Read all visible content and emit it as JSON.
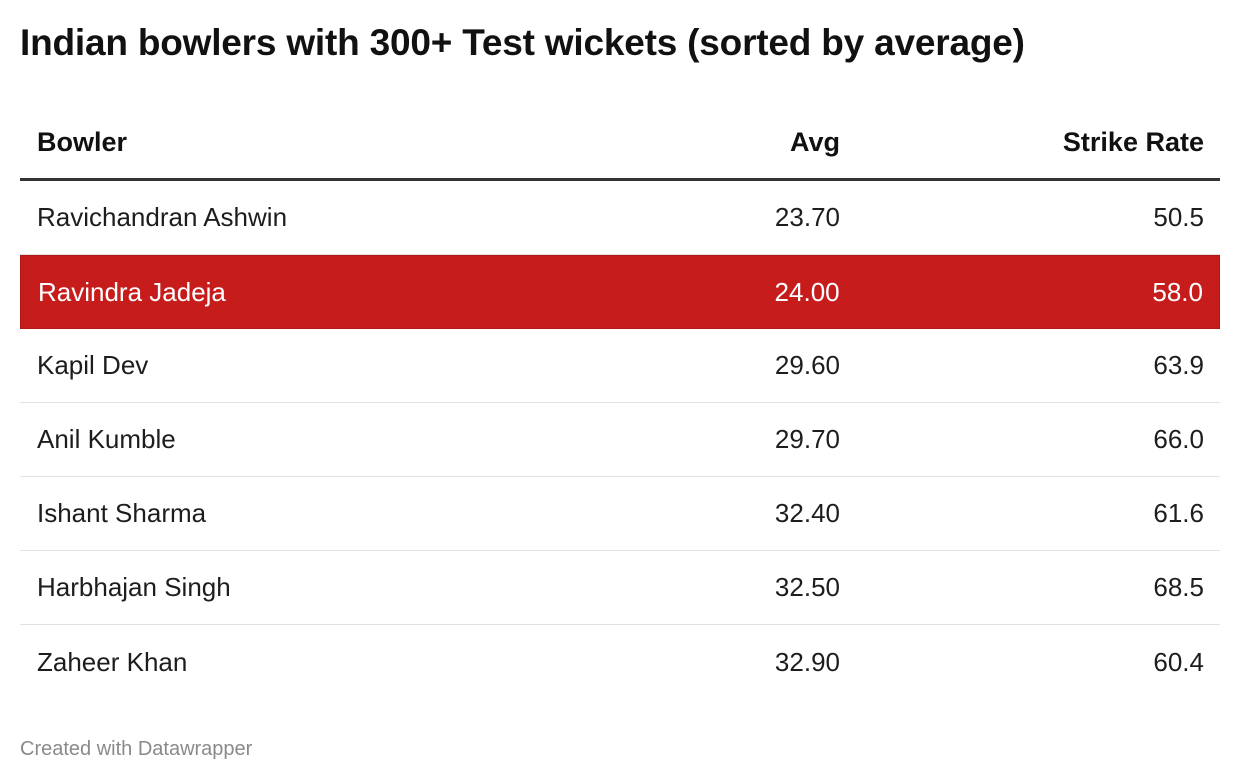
{
  "chart_data": {
    "type": "table",
    "title": "Indian bowlers with 300+ Test wickets (sorted by average)",
    "columns": [
      "Bowler",
      "Avg",
      "Strike Rate"
    ],
    "rows": [
      {
        "bowler": "Ravichandran Ashwin",
        "avg": "23.70",
        "strike_rate": "50.5",
        "highlighted": false
      },
      {
        "bowler": "Ravindra Jadeja",
        "avg": "24.00",
        "strike_rate": "58.0",
        "highlighted": true
      },
      {
        "bowler": "Kapil Dev",
        "avg": "29.60",
        "strike_rate": "63.9",
        "highlighted": false
      },
      {
        "bowler": "Anil Kumble",
        "avg": "29.70",
        "strike_rate": "66.0",
        "highlighted": false
      },
      {
        "bowler": "Ishant Sharma",
        "avg": "32.40",
        "strike_rate": "61.6",
        "highlighted": false
      },
      {
        "bowler": "Harbhajan Singh",
        "avg": "32.50",
        "strike_rate": "68.5",
        "highlighted": false
      },
      {
        "bowler": "Zaheer Khan",
        "avg": "32.90",
        "strike_rate": "60.4",
        "highlighted": false
      }
    ],
    "highlight_color": "#c61c1c"
  },
  "footer": "Created with Datawrapper"
}
